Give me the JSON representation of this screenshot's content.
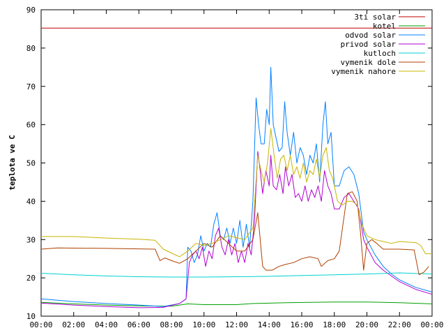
{
  "chart_data": {
    "type": "line",
    "title": "",
    "xlabel": "",
    "ylabel": "teplota ve C",
    "ylim": [
      10,
      90
    ],
    "xlim": [
      0,
      24
    ],
    "grid": false,
    "legend_position": "top-right",
    "yticks": [
      10,
      20,
      30,
      40,
      50,
      60,
      70,
      80,
      90
    ],
    "xticks": [
      "00:00",
      "02:00",
      "04:00",
      "06:00",
      "08:00",
      "10:00",
      "12:00",
      "14:00",
      "16:00",
      "18:00",
      "20:00",
      "22:00",
      "00:00"
    ],
    "series": [
      {
        "name": "3ti solar",
        "color": "#c00000",
        "points": [
          [
            0,
            85.2
          ],
          [
            24,
            85.2
          ]
        ]
      },
      {
        "name": "kotel",
        "color": "#00a000",
        "points": [
          [
            0,
            13.6
          ],
          [
            2,
            13.2
          ],
          [
            4,
            12.9
          ],
          [
            6,
            12.7
          ],
          [
            8,
            12.6
          ],
          [
            9,
            13.2
          ],
          [
            10,
            13.0
          ],
          [
            12,
            13.0
          ],
          [
            13,
            13.3
          ],
          [
            15,
            13.5
          ],
          [
            18,
            13.7
          ],
          [
            20,
            13.7
          ],
          [
            22,
            13.5
          ],
          [
            24,
            13.2
          ]
        ]
      },
      {
        "name": "odvod solar",
        "color": "#0080ff",
        "points": [
          [
            0,
            14.5
          ],
          [
            2,
            13.8
          ],
          [
            4,
            13.3
          ],
          [
            6,
            12.9
          ],
          [
            7.5,
            12.5
          ],
          [
            8.5,
            13.3
          ],
          [
            8.9,
            14.5
          ],
          [
            9.0,
            28
          ],
          [
            9.2,
            27
          ],
          [
            9.4,
            24
          ],
          [
            9.6,
            26
          ],
          [
            9.8,
            31
          ],
          [
            10.0,
            27
          ],
          [
            10.2,
            29
          ],
          [
            10.4,
            28
          ],
          [
            10.6,
            34
          ],
          [
            10.8,
            37
          ],
          [
            11.0,
            31
          ],
          [
            11.2,
            30
          ],
          [
            11.4,
            33
          ],
          [
            11.6,
            29
          ],
          [
            11.8,
            33
          ],
          [
            12.0,
            29
          ],
          [
            12.2,
            35
          ],
          [
            12.4,
            28
          ],
          [
            12.6,
            34
          ],
          [
            12.8,
            28
          ],
          [
            13.0,
            40
          ],
          [
            13.2,
            67
          ],
          [
            13.35,
            60
          ],
          [
            13.5,
            55
          ],
          [
            13.7,
            55
          ],
          [
            13.85,
            64
          ],
          [
            14.0,
            60
          ],
          [
            14.1,
            75
          ],
          [
            14.25,
            60
          ],
          [
            14.4,
            57
          ],
          [
            14.6,
            53
          ],
          [
            14.8,
            54
          ],
          [
            14.95,
            66
          ],
          [
            15.1,
            58
          ],
          [
            15.3,
            52
          ],
          [
            15.5,
            58
          ],
          [
            15.7,
            50
          ],
          [
            15.9,
            54
          ],
          [
            16.1,
            52
          ],
          [
            16.3,
            47
          ],
          [
            16.5,
            52
          ],
          [
            16.7,
            50
          ],
          [
            16.9,
            55
          ],
          [
            17.1,
            45
          ],
          [
            17.3,
            60
          ],
          [
            17.45,
            66
          ],
          [
            17.6,
            55
          ],
          [
            17.8,
            58
          ],
          [
            18.0,
            44
          ],
          [
            18.3,
            44
          ],
          [
            18.6,
            48
          ],
          [
            18.9,
            49
          ],
          [
            19.2,
            47
          ],
          [
            19.5,
            42
          ],
          [
            19.8,
            32
          ],
          [
            20.0,
            30
          ],
          [
            20.5,
            26
          ],
          [
            21,
            23
          ],
          [
            21.5,
            21
          ],
          [
            22,
            19.5
          ],
          [
            22.5,
            18.5
          ],
          [
            23,
            17.5
          ],
          [
            24,
            16.3
          ]
        ]
      },
      {
        "name": "privod solar",
        "color": "#b000d0",
        "points": [
          [
            0,
            13.4
          ],
          [
            2,
            12.9
          ],
          [
            4,
            12.5
          ],
          [
            6,
            12.2
          ],
          [
            7.5,
            12.3
          ],
          [
            8.5,
            13.3
          ],
          [
            8.9,
            14.5
          ],
          [
            9.1,
            24
          ],
          [
            9.3,
            26
          ],
          [
            9.5,
            27
          ],
          [
            9.7,
            25
          ],
          [
            9.9,
            28
          ],
          [
            10.1,
            23
          ],
          [
            10.3,
            27
          ],
          [
            10.5,
            25
          ],
          [
            10.7,
            31
          ],
          [
            10.9,
            33
          ],
          [
            11.1,
            28
          ],
          [
            11.3,
            26
          ],
          [
            11.5,
            30
          ],
          [
            11.7,
            26
          ],
          [
            11.9,
            29
          ],
          [
            12.1,
            24
          ],
          [
            12.3,
            27
          ],
          [
            12.5,
            24
          ],
          [
            12.7,
            29
          ],
          [
            12.9,
            26
          ],
          [
            13.1,
            35
          ],
          [
            13.3,
            53
          ],
          [
            13.45,
            48
          ],
          [
            13.6,
            42
          ],
          [
            13.8,
            48
          ],
          [
            14.0,
            44
          ],
          [
            14.1,
            52
          ],
          [
            14.25,
            44
          ],
          [
            14.45,
            43
          ],
          [
            14.65,
            47
          ],
          [
            14.85,
            42
          ],
          [
            15.0,
            49
          ],
          [
            15.2,
            44
          ],
          [
            15.4,
            47
          ],
          [
            15.6,
            41
          ],
          [
            15.8,
            42
          ],
          [
            16.0,
            40
          ],
          [
            16.2,
            44
          ],
          [
            16.4,
            40
          ],
          [
            16.6,
            43
          ],
          [
            16.8,
            41
          ],
          [
            17.0,
            44
          ],
          [
            17.2,
            40
          ],
          [
            17.4,
            48
          ],
          [
            17.6,
            44
          ],
          [
            17.8,
            42
          ],
          [
            18.0,
            38
          ],
          [
            18.3,
            38
          ],
          [
            18.6,
            41
          ],
          [
            18.9,
            42
          ],
          [
            19.2,
            40
          ],
          [
            19.5,
            38
          ],
          [
            19.8,
            30
          ],
          [
            20.0,
            28
          ],
          [
            20.5,
            24
          ],
          [
            21,
            22
          ],
          [
            21.5,
            20.5
          ],
          [
            22,
            19
          ],
          [
            22.5,
            18
          ],
          [
            23,
            17
          ],
          [
            24,
            15.7
          ]
        ]
      },
      {
        "name": "kutloch",
        "color": "#00d0d0",
        "points": [
          [
            0,
            21.2
          ],
          [
            2,
            20.8
          ],
          [
            4,
            20.5
          ],
          [
            6,
            20.3
          ],
          [
            8,
            20.2
          ],
          [
            10,
            20.2
          ],
          [
            12,
            20.3
          ],
          [
            14,
            20.4
          ],
          [
            16,
            20.6
          ],
          [
            18,
            20.8
          ],
          [
            20,
            21.0
          ],
          [
            22,
            21.3
          ],
          [
            24,
            21.0
          ]
        ]
      },
      {
        "name": "vymenik dole",
        "color": "#b04000",
        "points": [
          [
            0,
            27.5
          ],
          [
            1,
            27.8
          ],
          [
            4,
            27.7
          ],
          [
            7,
            27.5
          ],
          [
            7.3,
            24.5
          ],
          [
            7.6,
            25.2
          ],
          [
            8,
            24.5
          ],
          [
            8.5,
            23.8
          ],
          [
            9,
            25
          ],
          [
            9.5,
            27
          ],
          [
            10,
            29
          ],
          [
            10.5,
            28
          ],
          [
            11,
            31
          ],
          [
            11.5,
            29
          ],
          [
            12,
            27
          ],
          [
            12.5,
            27
          ],
          [
            13,
            30
          ],
          [
            13.3,
            37
          ],
          [
            13.6,
            23
          ],
          [
            13.8,
            22
          ],
          [
            14.2,
            22
          ],
          [
            14.6,
            23
          ],
          [
            15,
            23.5
          ],
          [
            15.5,
            24
          ],
          [
            16,
            25
          ],
          [
            16.5,
            25.5
          ],
          [
            17,
            25
          ],
          [
            17.2,
            23
          ],
          [
            17.6,
            24.5
          ],
          [
            18,
            25
          ],
          [
            18.3,
            27
          ],
          [
            18.5,
            33
          ],
          [
            18.8,
            42
          ],
          [
            19.1,
            42.5
          ],
          [
            19.4,
            40
          ],
          [
            19.6,
            32
          ],
          [
            19.8,
            22
          ],
          [
            20.0,
            29
          ],
          [
            20.3,
            30
          ],
          [
            20.6,
            29
          ],
          [
            21,
            27.5
          ],
          [
            22,
            27.5
          ],
          [
            22.9,
            27.3
          ],
          [
            23.2,
            20.8
          ],
          [
            23.5,
            21.5
          ],
          [
            23.8,
            23
          ]
        ]
      },
      {
        "name": "vymenik nahore",
        "color": "#c8b400",
        "points": [
          [
            0,
            30.8
          ],
          [
            2,
            30.8
          ],
          [
            4,
            30.4
          ],
          [
            6,
            30.1
          ],
          [
            7,
            29.8
          ],
          [
            7.5,
            27.5
          ],
          [
            8,
            26.5
          ],
          [
            8.5,
            25.5
          ],
          [
            9,
            27
          ],
          [
            9.5,
            29
          ],
          [
            10,
            28.5
          ],
          [
            10.5,
            29
          ],
          [
            11,
            30
          ],
          [
            11.5,
            31
          ],
          [
            12,
            30.5
          ],
          [
            12.5,
            30
          ],
          [
            13,
            33
          ],
          [
            13.3,
            52
          ],
          [
            13.5,
            48
          ],
          [
            13.7,
            45
          ],
          [
            13.9,
            50
          ],
          [
            14.1,
            59
          ],
          [
            14.3,
            52
          ],
          [
            14.5,
            46
          ],
          [
            14.7,
            51
          ],
          [
            14.9,
            52
          ],
          [
            15.1,
            48
          ],
          [
            15.3,
            52
          ],
          [
            15.5,
            47
          ],
          [
            15.7,
            49
          ],
          [
            15.9,
            46
          ],
          [
            16.1,
            50
          ],
          [
            16.3,
            45
          ],
          [
            16.5,
            48
          ],
          [
            16.7,
            47
          ],
          [
            16.9,
            51
          ],
          [
            17.1,
            46
          ],
          [
            17.3,
            52
          ],
          [
            17.5,
            54
          ],
          [
            17.7,
            48
          ],
          [
            17.9,
            46
          ],
          [
            18.2,
            40
          ],
          [
            18.5,
            39
          ],
          [
            18.8,
            40
          ],
          [
            19.1,
            40
          ],
          [
            19.4,
            39
          ],
          [
            19.7,
            34
          ],
          [
            20.0,
            31
          ],
          [
            20.5,
            30
          ],
          [
            21,
            29.5
          ],
          [
            21.5,
            29
          ],
          [
            22,
            29.5
          ],
          [
            23,
            29.2
          ],
          [
            23.3,
            28.5
          ],
          [
            23.6,
            26.3
          ],
          [
            24,
            26.3
          ]
        ]
      }
    ]
  }
}
